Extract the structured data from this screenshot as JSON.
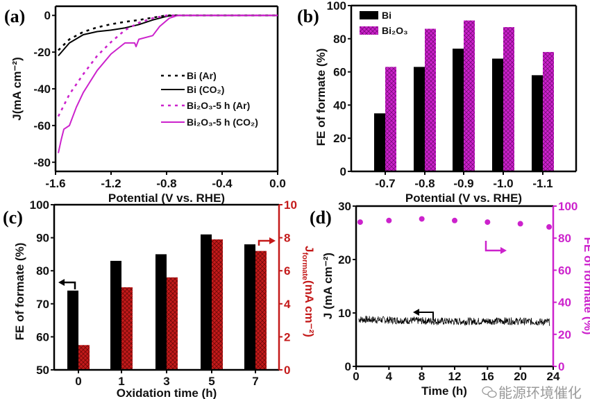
{
  "colors": {
    "black": "#000000",
    "magenta": "#cc22cc",
    "magenta_dark": "#7a0a7a",
    "red": "#c41a1a",
    "red_dark": "#6e0808",
    "watermark": "#9a9a9a"
  },
  "watermark": {
    "icon": "wechat-icon",
    "text": "能源环境催化"
  },
  "chart_data": [
    {
      "panel": "(a)",
      "type": "line",
      "xlabel": "Potential (V vs. RHE)",
      "ylabel": "J(mA cm⁻²)",
      "xlim": [
        -1.6,
        0.0
      ],
      "ylim": [
        -85,
        5
      ],
      "xticks": [
        "-1.6",
        "-1.2",
        "-0.8",
        "-0.4",
        "0.0"
      ],
      "xtick_values": [
        -1.6,
        -1.2,
        -0.8,
        -0.4,
        0.0
      ],
      "yticks": [
        "0",
        "-20",
        "-40",
        "-60",
        "-80"
      ],
      "ytick_values": [
        0,
        -20,
        -40,
        -60,
        -80
      ],
      "legend_position": "center-right",
      "series": [
        {
          "name": "Bi (Ar)",
          "color": "#000000",
          "style": "dotted",
          "x": [
            -1.58,
            -1.5,
            -1.4,
            -1.3,
            -1.2,
            -1.1,
            -1.0,
            -0.9,
            -0.8,
            -0.7,
            0.0
          ],
          "y": [
            -19,
            -13,
            -9,
            -6.5,
            -4.8,
            -3.5,
            -2.5,
            -1.2,
            0,
            0,
            0
          ]
        },
        {
          "name": "Bi (CO₂)",
          "color": "#000000",
          "style": "solid",
          "x": [
            -1.58,
            -1.5,
            -1.4,
            -1.3,
            -1.2,
            -1.1,
            -1.0,
            -0.9,
            -0.8,
            -0.75,
            0.0
          ],
          "y": [
            -22,
            -15,
            -10.5,
            -8.8,
            -8,
            -6.8,
            -5,
            -2.5,
            -0.5,
            0,
            0
          ]
        },
        {
          "name": "Bi₂O₃-5 h (Ar)",
          "color": "#cc22cc",
          "style": "dotted",
          "x": [
            -1.58,
            -1.5,
            -1.4,
            -1.3,
            -1.2,
            -1.1,
            -1.0,
            -0.9,
            -0.8,
            -0.75,
            0.0
          ],
          "y": [
            -55,
            -43,
            -32,
            -22,
            -14.5,
            -8,
            -4,
            -1.5,
            0,
            0,
            0
          ]
        },
        {
          "name": "Bi₂O₃-5 h (CO₂)",
          "color": "#cc22cc",
          "style": "solid",
          "x": [
            -1.58,
            -1.56,
            -1.54,
            -1.5,
            -1.45,
            -1.4,
            -1.3,
            -1.2,
            -1.1,
            -1.03,
            -1.02,
            -1.0,
            -0.9,
            -0.85,
            -0.78,
            -0.72,
            0.0
          ],
          "y": [
            -75,
            -68,
            -62,
            -60,
            -50,
            -42,
            -30,
            -21,
            -15,
            -15,
            -17,
            -13,
            -11,
            -6,
            -1.5,
            0,
            0
          ]
        }
      ]
    },
    {
      "panel": "(b)",
      "type": "bar",
      "xlabel": "Potential (V vs. RHE)",
      "ylabel": "FE of formate (%)",
      "ylim": [
        0,
        100
      ],
      "yticks": [
        "0",
        "20",
        "40",
        "60",
        "80",
        "100"
      ],
      "ytick_values": [
        0,
        20,
        40,
        60,
        80,
        100
      ],
      "categories": [
        "-0.7",
        "-0.8",
        "-0.9",
        "-1.0",
        "-1.1"
      ],
      "legend_position": "top-left",
      "series": [
        {
          "name": "Bi",
          "color": "#000000",
          "fill": "solid",
          "values": [
            35,
            63,
            74,
            68,
            58
          ]
        },
        {
          "name": "Bi₂O₃",
          "color": "#cc22cc",
          "fill": "crosshatch",
          "values": [
            63,
            86,
            91,
            87,
            72
          ]
        }
      ]
    },
    {
      "panel": "(c)",
      "type": "bar",
      "xlabel": "Oxidation time (h)",
      "ylabel": "FE of formate (%)",
      "ylabel_right": {
        "main": "J",
        "sub": "formate",
        "unit": "(mA cm⁻²)"
      },
      "ylim": [
        50,
        100
      ],
      "ylim_right": [
        0,
        10
      ],
      "yticks": [
        "50",
        "60",
        "70",
        "80",
        "90",
        "100"
      ],
      "ytick_values": [
        50,
        60,
        70,
        80,
        90,
        100
      ],
      "yticks_right": [
        "0",
        "2",
        "4",
        "6",
        "8",
        "10"
      ],
      "ytick_values_right": [
        0,
        2,
        4,
        6,
        8,
        10
      ],
      "categories": [
        "0",
        "1",
        "3",
        "5",
        "7"
      ],
      "series": [
        {
          "axis": "left",
          "color": "#000000",
          "fill": "solid",
          "values": [
            74,
            83,
            85,
            91,
            88
          ]
        },
        {
          "axis": "right",
          "color": "#c41a1a",
          "fill": "crosshatch",
          "values": [
            1.5,
            5.0,
            5.6,
            7.9,
            7.2
          ]
        }
      ]
    },
    {
      "panel": "(d)",
      "type": "line+scatter",
      "xlabel": "Time (h)",
      "ylabel": "J (mA cm⁻²)",
      "ylabel_right": "FE of formate (%)",
      "xlim": [
        0,
        24
      ],
      "ylim": [
        0,
        30
      ],
      "ylim_right": [
        0,
        100
      ],
      "xticks": [
        "0",
        "4",
        "8",
        "12",
        "16",
        "20",
        "24"
      ],
      "xtick_values": [
        0,
        4,
        8,
        12,
        16,
        20,
        24
      ],
      "yticks": [
        "0",
        "10",
        "20",
        "30"
      ],
      "ytick_values": [
        0,
        10,
        20,
        30
      ],
      "yticks_right": [
        "0",
        "20",
        "40",
        "60",
        "80",
        "100"
      ],
      "ytick_values_right": [
        0,
        20,
        40,
        60,
        80,
        100
      ],
      "series": [
        {
          "axis": "left",
          "type": "line",
          "color": "#000000",
          "x": [
            0.3,
            6,
            12,
            18,
            23.6
          ],
          "y": [
            8.8,
            8.6,
            8.4,
            8.5,
            8.3
          ]
        },
        {
          "axis": "right",
          "type": "scatter",
          "color": "#cc22cc",
          "x": [
            0.5,
            4,
            8,
            12,
            16,
            20,
            23.5
          ],
          "y": [
            90,
            91,
            92,
            91,
            90,
            89,
            87
          ]
        }
      ]
    }
  ]
}
